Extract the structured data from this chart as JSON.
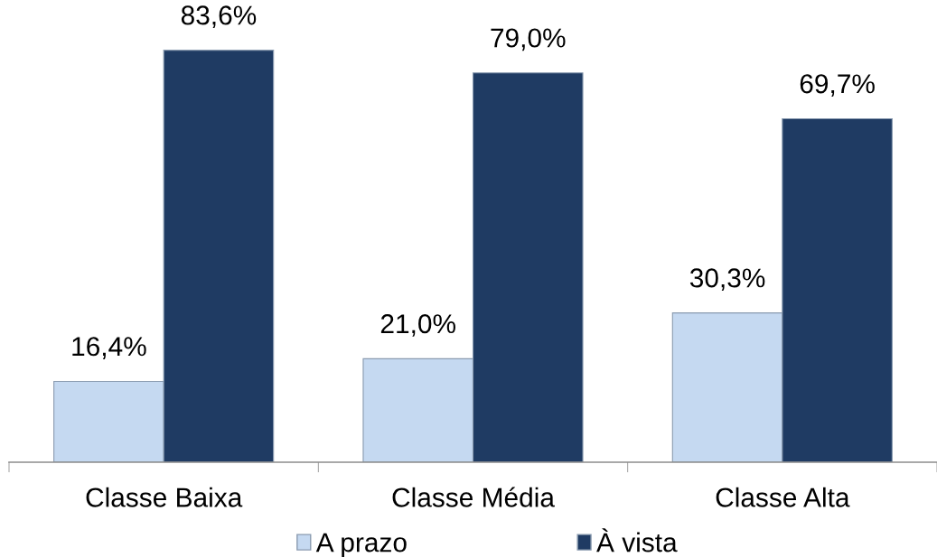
{
  "chart_data": {
    "type": "bar",
    "categories": [
      "Classe Baixa",
      "Classe Média",
      "Classe Alta"
    ],
    "series": [
      {
        "name": "A prazo",
        "color": "#c5d9f1",
        "values": [
          16.4,
          21.0,
          30.3
        ],
        "value_labels": [
          "16,4%",
          "21,0%",
          "30,3%"
        ]
      },
      {
        "name": "À vista",
        "color": "#1f3b63",
        "values": [
          83.6,
          79.0,
          69.7
        ],
        "value_labels": [
          "83,6%",
          "79,0%",
          "69,7%"
        ]
      }
    ],
    "legend": "bottom",
    "grid": false,
    "tick_labels": "x"
  }
}
